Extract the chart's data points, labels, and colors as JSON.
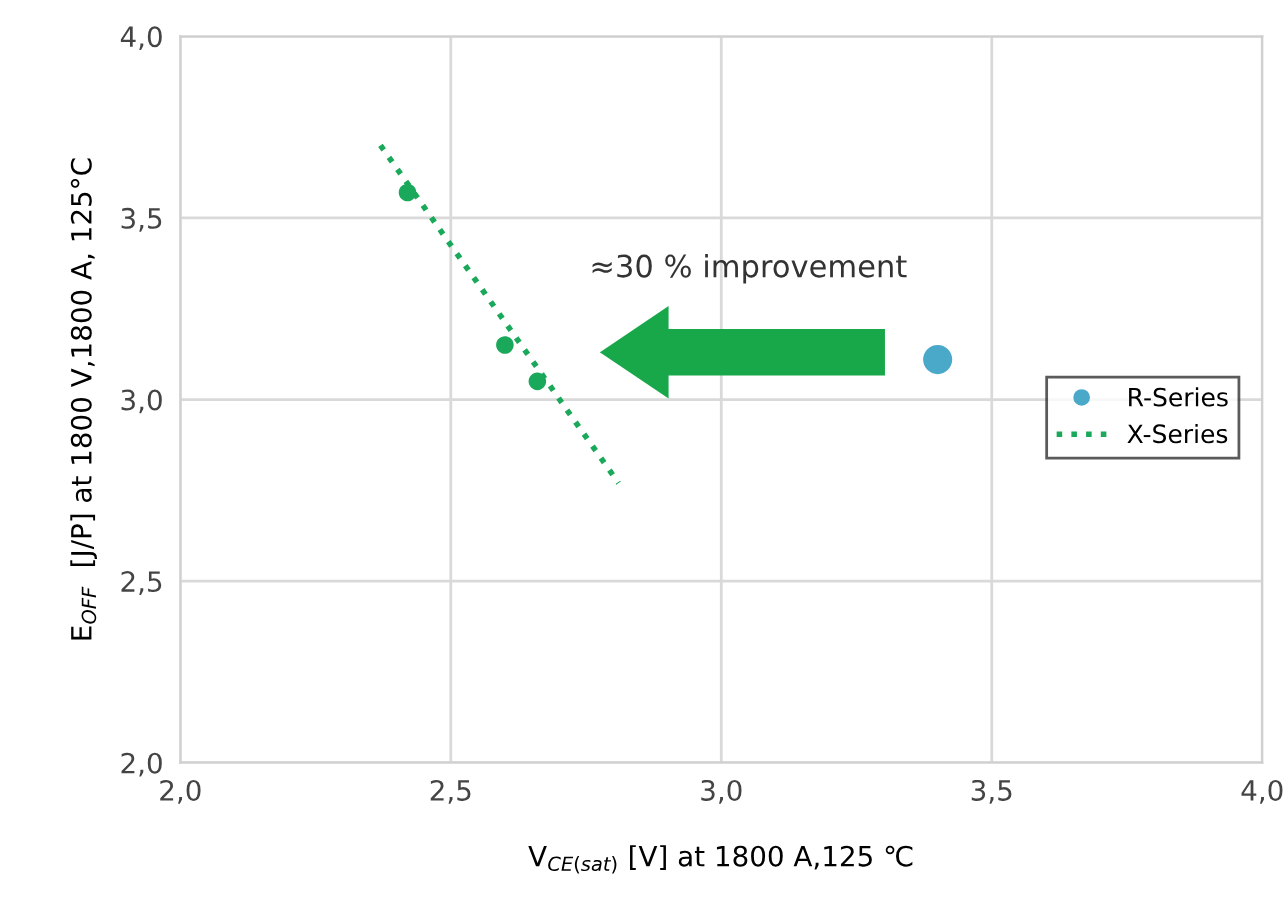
{
  "chart_data": {
    "type": "scatter",
    "xlabel": "V$_{CE(sat)}$ [V] at 1800 A,125 ℃",
    "ylabel": "E$_{OFF}$  [J/P] at 1800 V,1800 A, 125°C",
    "annotations": [
      "≈30 % improvement"
    ],
    "series": [
      {
        "name": "R-Series",
        "color": "#4aa8c8",
        "x": [
          3.4
        ],
        "values": [
          3.11
        ],
        "marker": "circle"
      },
      {
        "name": "X-Series",
        "type": "line",
        "color": "#1aa85a",
        "x": [
          2.37,
          2.81
        ],
        "values": [
          3.7,
          2.77
        ],
        "line_style": "dotted",
        "marker": "none"
      },
      {
        "color": "#1aa85a",
        "x": [
          2.42,
          2.6,
          2.66
        ],
        "values": [
          3.57,
          3.15,
          3.05
        ],
        "marker": "circle"
      }
    ],
    "xlim": [
      2,
      4
    ],
    "ylim": [
      2,
      4
    ],
    "xticks": [
      {
        "value": 2,
        "label": "2,0"
      },
      {
        "value": 2.5,
        "label": "2,5"
      },
      {
        "value": 3,
        "label": "3,0"
      },
      {
        "value": 3.5,
        "label": "3,5"
      },
      {
        "value": 4,
        "label": "4,0"
      }
    ],
    "yticks": [
      {
        "value": 2,
        "label": "2,0"
      },
      {
        "value": 2.5,
        "label": "2,5"
      },
      {
        "value": 3,
        "label": "3,0"
      },
      {
        "value": 3.5,
        "label": "3,5"
      },
      {
        "value": 4,
        "label": "4,0"
      }
    ],
    "grid": true,
    "legend": "center right"
  }
}
